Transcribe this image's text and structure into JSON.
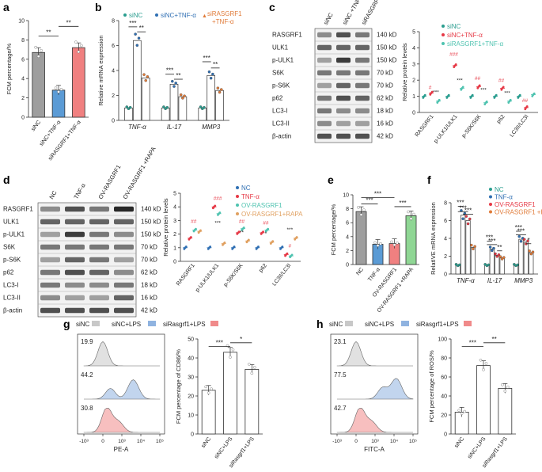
{
  "chart_data": [
    {
      "panel": "a",
      "type": "bar",
      "ylabel": "FCM percentage/%",
      "ylim": [
        0,
        10
      ],
      "yticks": [
        0,
        2,
        4,
        6,
        8,
        10
      ],
      "categories": [
        "siNC",
        "siNC+TNF-α",
        "siRASGRF1+TNF-α"
      ],
      "values": [
        6.7,
        2.8,
        7.2
      ],
      "colors": [
        "#9e9e9e",
        "#5b9bd5",
        "#f08080"
      ],
      "significance": [
        "**",
        "**"
      ]
    },
    {
      "panel": "b",
      "type": "bar",
      "ylabel": "Relative mRNA expression",
      "ylim": [
        0,
        8
      ],
      "yticks": [
        0,
        2,
        4,
        6,
        8
      ],
      "categories": [
        "TNF-α",
        "IL-17",
        "MMP3"
      ],
      "series": [
        {
          "name": "siNC",
          "values": [
            1.0,
            1.0,
            1.0
          ],
          "color": "#2a9d8f"
        },
        {
          "name": "siNC+TNF-α",
          "values": [
            6.4,
            2.9,
            3.6
          ],
          "color": "#2f6fb3"
        },
        {
          "name": "siRASGRF1+TNF-α",
          "values": [
            3.4,
            1.9,
            2.4
          ],
          "color": "#e07b39"
        }
      ],
      "significance": [
        "***",
        "**",
        "***",
        "**",
        "***",
        "**"
      ]
    },
    {
      "panel": "c",
      "type": "scatter",
      "ylabel": "Relative protein levels",
      "ylim": [
        0,
        5
      ],
      "yticks": [
        0,
        1,
        2,
        3,
        4,
        5
      ],
      "categories": [
        "RASGRF1",
        "p-ULK1/ULK1",
        "p-S6K/S6K",
        "p62",
        "LC3II/LC3I"
      ],
      "series": [
        {
          "name": "siNC",
          "values": [
            1.0,
            1.0,
            1.0,
            1.0,
            1.0
          ],
          "color": "#2a9d8f"
        },
        {
          "name": "siNC+TNF-α",
          "values": [
            1.2,
            2.9,
            1.6,
            1.5,
            0.3
          ],
          "color": "#e63946"
        },
        {
          "name": "siRASGRF1+TNF-α",
          "values": [
            0.7,
            1.5,
            0.6,
            0.7,
            1.1
          ],
          "color": "#4fc3b0"
        }
      ],
      "marks": [
        "#",
        "###",
        "##",
        "##",
        "##",
        "***",
        "***",
        "***",
        "***"
      ],
      "blot_labels": [
        "RASGRF1",
        "ULK1",
        "p-ULK1",
        "S6K",
        "p-S6K",
        "p62",
        "LC3-I",
        "LC3-II",
        "β-actin"
      ],
      "blot_kd": [
        "140 kD",
        "150 kD",
        "150 kD",
        "70 kD",
        "70 kD",
        "62 kD",
        "18 kD",
        "16 kD",
        "42 kD"
      ],
      "lanes": [
        "siNC",
        "siNC +TNF-α",
        "siRASGRF1 +TNF-α"
      ]
    },
    {
      "panel": "d",
      "type": "scatter",
      "ylabel": "Relative protein levels",
      "ylim": [
        0,
        5
      ],
      "yticks": [
        0,
        1,
        2,
        3,
        4,
        5
      ],
      "categories": [
        "RASGRF1",
        "p-ULK1/ULK1",
        "p-S6K/S6K",
        "p62",
        "LC3II/LC3I"
      ],
      "series": [
        {
          "name": "NC",
          "values": [
            1.0,
            1.0,
            1.0,
            1.0,
            1.0
          ],
          "color": "#2f6fb3"
        },
        {
          "name": "TNF-α",
          "values": [
            1.7,
            4.0,
            2.1,
            2.1,
            0.5
          ],
          "color": "#e63946"
        },
        {
          "name": "OV-RASGRF1",
          "values": [
            2.3,
            3.5,
            2.4,
            2.3,
            0.4
          ],
          "color": "#4fc3b0"
        },
        {
          "name": "OV-RASGRF1+RAPA",
          "values": [
            2.2,
            1.3,
            1.5,
            1.4,
            1.7
          ],
          "color": "#e0a060"
        }
      ],
      "marks": [
        "##",
        "###",
        "##",
        "##",
        "#",
        "***",
        "**",
        "*",
        "***"
      ],
      "blot_labels": [
        "RASGRF1",
        "ULK1",
        "p-ULK1",
        "S6K",
        "p-S6K",
        "p62",
        "LC3-I",
        "LC3-II",
        "β-actin"
      ],
      "blot_kd": [
        "140 kD",
        "150 kD",
        "150 kD",
        "70 kD",
        "70 kD",
        "62 kD",
        "18 kD",
        "16 kD",
        "42 kD"
      ],
      "lanes": [
        "NC",
        "TNF-α",
        "OV-RASGRF1",
        "OV-RASGRF1 +RAPA"
      ]
    },
    {
      "panel": "e",
      "type": "bar",
      "ylabel": "FCM percentage/%",
      "ylim": [
        0,
        10
      ],
      "yticks": [
        0,
        2,
        4,
        6,
        8,
        10
      ],
      "categories": [
        "NC",
        "TNF-α",
        "OV-RASGRF1",
        "OV-RASGRF1 +RAPA"
      ],
      "values": [
        7.6,
        2.9,
        3.0,
        7.0
      ],
      "colors": [
        "#9e9e9e",
        "#5b9bd5",
        "#f08080",
        "#8fd694"
      ],
      "significance": [
        "***",
        "***",
        "***"
      ]
    },
    {
      "panel": "f",
      "type": "bar",
      "ylabel": "RelatIVE mRNA expression",
      "ylim": [
        0,
        8
      ],
      "yticks": [
        0,
        2,
        4,
        6,
        8
      ],
      "categories": [
        "TNF-α",
        "IL-17",
        "MMP3"
      ],
      "series": [
        {
          "name": "NC",
          "values": [
            1.0,
            1.0,
            1.0
          ],
          "color": "#2a9d8f"
        },
        {
          "name": "TNF-α",
          "values": [
            6.6,
            2.8,
            3.9
          ],
          "color": "#2f6fb3"
        },
        {
          "name": "OV-RASGRF1",
          "values": [
            6.0,
            2.1,
            3.6
          ],
          "color": "#e63946"
        },
        {
          "name": "OV-RASGRF1 +RAPA",
          "values": [
            3.0,
            1.8,
            2.4
          ],
          "color": "#e07b39"
        }
      ],
      "significance": [
        "***",
        "***",
        "***",
        "***",
        "***",
        "**",
        "***",
        "***",
        "*"
      ]
    },
    {
      "panel": "g",
      "type": "bar",
      "legend": [
        "siNC",
        "siNC+LPS",
        "siRasgrf1+LPS"
      ],
      "legend_colors": [
        "#c8c8c8",
        "#8fb3e0",
        "#f08a8a"
      ],
      "histogram_values": [
        "19.9",
        "44.2",
        "30.8"
      ],
      "hist_xlabel": "PE-A",
      "hist_ticks": [
        "-10³",
        "0",
        "10³",
        "10⁴",
        "10⁵"
      ],
      "ylabel": "FCM percentage of CD86/%",
      "ylim": [
        0,
        50
      ],
      "yticks": [
        0,
        10,
        20,
        30,
        40,
        50
      ],
      "categories": [
        "siNC",
        "siNC+LPS",
        "siRasgrf1+LPS"
      ],
      "values": [
        23,
        43,
        34
      ],
      "significance": [
        "***",
        "*"
      ]
    },
    {
      "panel": "h",
      "type": "bar",
      "legend": [
        "siNC",
        "siNC+LPS",
        "siRasgrf1+LPS"
      ],
      "legend_colors": [
        "#c8c8c8",
        "#8fb3e0",
        "#f08a8a"
      ],
      "histogram_values": [
        "23.1",
        "77.5",
        "42.7"
      ],
      "hist_xlabel": "FITC-A",
      "hist_ticks": [
        "-10³",
        "0",
        "10³",
        "10⁴",
        "10⁵"
      ],
      "ylabel": "FCM percentage of ROS/%",
      "ylim": [
        0,
        100
      ],
      "yticks": [
        0,
        20,
        40,
        60,
        80,
        100
      ],
      "categories": [
        "siNC",
        "siNC+LPS",
        "siRasgrf1+LPS"
      ],
      "values": [
        23,
        72,
        48
      ],
      "significance": [
        "***",
        "**"
      ]
    }
  ]
}
